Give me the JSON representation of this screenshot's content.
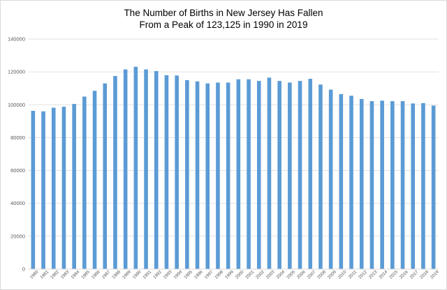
{
  "chart_data": {
    "type": "bar",
    "title_line1": "The Number of Births in New Jersey Has Fallen",
    "title_line2": "From a Peak of 123,125 in 1990 in 2019",
    "xlabel": "",
    "ylabel": "",
    "ylim": [
      0,
      140000
    ],
    "yticks": [
      0,
      20000,
      40000,
      60000,
      80000,
      100000,
      120000,
      140000
    ],
    "ytick_labels": [
      "0",
      "20000",
      "40000",
      "60000",
      "80000",
      "100000",
      "120000",
      "140000"
    ],
    "grid": true,
    "legend": "none",
    "bar_color": "#5b9bd5",
    "gridline_color": "#d9d9d9",
    "categories": [
      "1980",
      "1981",
      "1982",
      "1983",
      "1984",
      "1985",
      "1986",
      "1987",
      "1988",
      "1989",
      "1990",
      "1991",
      "1992",
      "1993",
      "1994",
      "1995",
      "1996",
      "1997",
      "1998",
      "1999",
      "2000",
      "2001",
      "2002",
      "2003",
      "2004",
      "2005",
      "2006",
      "2007",
      "2008",
      "2009",
      "2010",
      "2011",
      "2012",
      "2013",
      "2014",
      "2015",
      "2016",
      "2017",
      "2018",
      "2019"
    ],
    "values": [
      96300,
      96000,
      98200,
      98800,
      100500,
      105000,
      108500,
      113000,
      117500,
      121500,
      123125,
      121500,
      120500,
      118000,
      117800,
      115000,
      114200,
      113000,
      113500,
      113500,
      115500,
      115500,
      114500,
      116500,
      114500,
      113500,
      114500,
      115800,
      112300,
      109200,
      106500,
      105500,
      103500,
      102200,
      102500,
      102200,
      102200,
      100800,
      101000,
      99500
    ]
  }
}
